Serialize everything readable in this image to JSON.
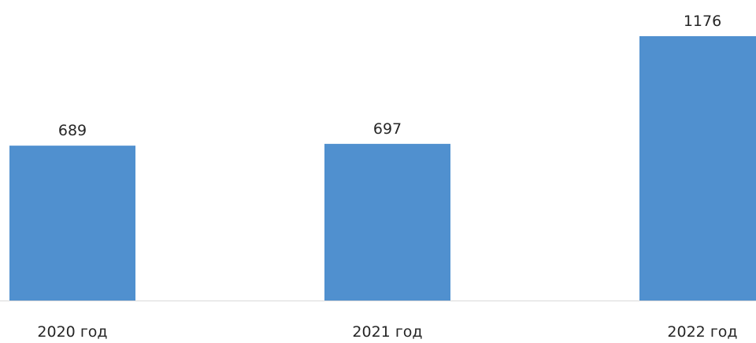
{
  "chart_data": {
    "type": "bar",
    "categories": [
      "2020 год",
      "2021 год",
      "2022 год"
    ],
    "values": [
      689,
      697,
      1176
    ],
    "data_labels": [
      "689",
      "697",
      "1176"
    ],
    "title": "",
    "xlabel": "",
    "ylabel": "",
    "ylim": [
      0,
      1176
    ],
    "grid": false,
    "legend": "none",
    "colors": {
      "bar": "#5090cf",
      "axis": "#d9d9d9",
      "text": "#262626"
    }
  }
}
